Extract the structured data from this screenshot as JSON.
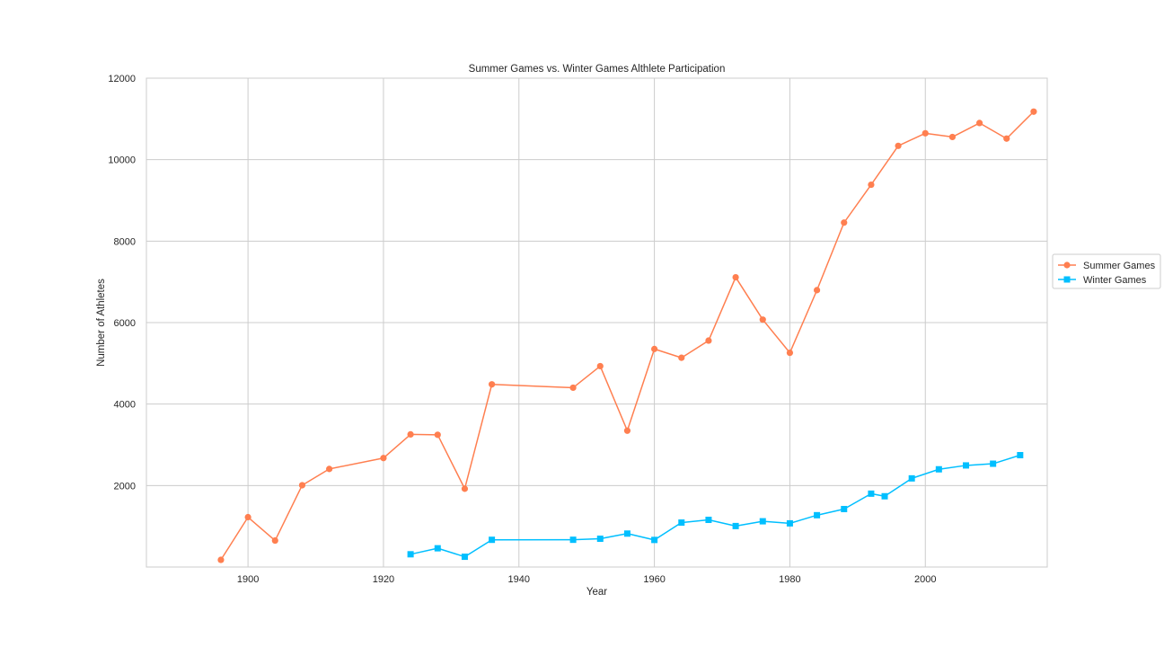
{
  "chart_data": {
    "type": "line",
    "title": "Summer Games vs. Winter Games Althlete Participation",
    "xlabel": "Year",
    "ylabel": "Number of Athletes",
    "xlim": [
      1885,
      2018
    ],
    "ylim": [
      0,
      12000
    ],
    "xticks": [
      1900,
      1920,
      1940,
      1960,
      1980,
      2000
    ],
    "yticks": [
      2000,
      4000,
      6000,
      8000,
      10000,
      12000
    ],
    "grid": true,
    "legend_position": "right, outside plot area",
    "series": [
      {
        "name": "Summer Games",
        "color": "#ff7f50",
        "marker": "circle",
        "x": [
          1896,
          1900,
          1904,
          1908,
          1912,
          1920,
          1924,
          1928,
          1932,
          1936,
          1948,
          1952,
          1956,
          1960,
          1964,
          1968,
          1972,
          1976,
          1980,
          1984,
          1988,
          1992,
          1996,
          2000,
          2004,
          2008,
          2012,
          2016
        ],
        "y": [
          176,
          1224,
          650,
          2008,
          2407,
          2675,
          3256,
          3246,
          1922,
          4484,
          4402,
          4932,
          3347,
          5352,
          5137,
          5558,
          7113,
          6073,
          5259,
          6797,
          8454,
          9385,
          10339,
          10647,
          10557,
          10899,
          10517,
          11179
        ]
      },
      {
        "name": "Winter Games",
        "color": "#00bfff",
        "marker": "square",
        "x": [
          1924,
          1928,
          1932,
          1936,
          1948,
          1952,
          1956,
          1960,
          1964,
          1968,
          1972,
          1976,
          1980,
          1984,
          1988,
          1992,
          1994,
          1998,
          2002,
          2006,
          2010,
          2014
        ],
        "y": [
          313,
          460,
          252,
          668,
          669,
          694,
          821,
          665,
          1091,
          1158,
          1006,
          1123,
          1072,
          1272,
          1423,
          1801,
          1737,
          2176,
          2399,
          2494,
          2536,
          2746
        ]
      }
    ]
  }
}
